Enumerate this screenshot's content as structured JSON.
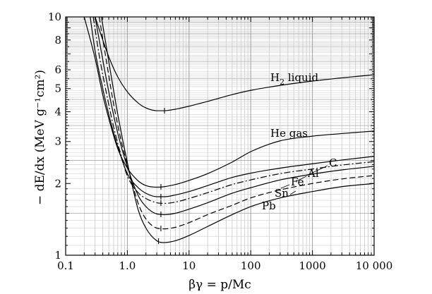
{
  "chart_data": {
    "type": "line",
    "xlabel": "βγ = p/Mc",
    "ylabel": "− dE/dx (MeV g⁻¹cm²)",
    "x_scale": "log",
    "y_scale": "log",
    "xlim": [
      0.1,
      10000
    ],
    "ylim": [
      1,
      10
    ],
    "x_ticks": [
      {
        "value": 0.1,
        "label": "0.1"
      },
      {
        "value": 1,
        "label": "1.0"
      },
      {
        "value": 10,
        "label": "10"
      },
      {
        "value": 100,
        "label": "100"
      },
      {
        "value": 1000,
        "label": "1000"
      },
      {
        "value": 10000,
        "label": "10 000"
      }
    ],
    "y_ticks": [
      {
        "value": 1,
        "label": "1"
      },
      {
        "value": 2,
        "label": "2"
      },
      {
        "value": 3,
        "label": "3"
      },
      {
        "value": 4,
        "label": "4"
      },
      {
        "value": 5,
        "label": "5"
      },
      {
        "value": 6,
        "label": "6"
      },
      {
        "value": 8,
        "label": "8"
      },
      {
        "value": 10,
        "label": "10"
      }
    ],
    "grid": true,
    "series": [
      {
        "name": "H2 liquid",
        "label_main": "H",
        "label_sub": "2",
        "label_rest": " liquid",
        "dash": "solid",
        "min_marker_x": 4.0,
        "x": [
          0.3,
          0.4,
          0.5,
          0.7,
          1.0,
          1.5,
          2.0,
          3.0,
          4.0,
          6.0,
          10,
          20,
          50,
          100,
          300,
          1000,
          3000,
          10000
        ],
        "y": [
          10.0,
          8.0,
          6.8,
          5.6,
          4.85,
          4.35,
          4.15,
          4.04,
          4.04,
          4.1,
          4.22,
          4.42,
          4.72,
          4.92,
          5.16,
          5.38,
          5.55,
          5.72
        ]
      },
      {
        "name": "He gas",
        "label_main": "He gas",
        "dash": "solid",
        "min_marker_x": 3.5,
        "x": [
          0.2,
          0.3,
          0.4,
          0.5,
          0.7,
          1.0,
          1.5,
          2.0,
          3.0,
          4.0,
          6.0,
          10,
          20,
          50,
          100,
          300,
          1000,
          3000,
          10000
        ],
        "y": [
          10.0,
          6.7,
          4.7,
          3.75,
          2.8,
          2.32,
          2.05,
          1.96,
          1.93,
          1.94,
          1.98,
          2.06,
          2.2,
          2.46,
          2.72,
          3.02,
          3.16,
          3.24,
          3.32
        ]
      },
      {
        "name": "C",
        "label_main": "C",
        "dash": "solid",
        "min_marker_x": 3.5,
        "x": [
          0.25,
          0.3,
          0.4,
          0.5,
          0.7,
          1.0,
          1.5,
          2.0,
          3.0,
          4.0,
          6.0,
          10,
          20,
          50,
          100,
          300,
          1000,
          3000,
          10000
        ],
        "y": [
          10.0,
          7.2,
          5.0,
          3.9,
          2.85,
          2.2,
          1.92,
          1.82,
          1.76,
          1.76,
          1.79,
          1.85,
          1.96,
          2.12,
          2.21,
          2.32,
          2.42,
          2.51,
          2.6
        ]
      },
      {
        "name": "Al",
        "label_main": "Al",
        "dash": "dashdot",
        "min_marker_x": 3.5,
        "x": [
          0.28,
          0.35,
          0.45,
          0.6,
          0.8,
          1.0,
          1.5,
          2.0,
          3.0,
          4.0,
          6.0,
          10,
          20,
          50,
          100,
          300,
          1000,
          3000,
          10000
        ],
        "y": [
          10.0,
          6.9,
          4.9,
          3.45,
          2.6,
          2.15,
          1.83,
          1.73,
          1.66,
          1.65,
          1.67,
          1.73,
          1.83,
          1.98,
          2.07,
          2.2,
          2.3,
          2.39,
          2.47
        ]
      },
      {
        "name": "Fe",
        "label_main": "Fe",
        "dash": "solid",
        "min_marker_x": 3.5,
        "x": [
          0.3,
          0.4,
          0.5,
          0.7,
          1.0,
          1.5,
          2.0,
          3.0,
          4.0,
          6.0,
          10,
          20,
          50,
          100,
          300,
          1000,
          3000,
          10000
        ],
        "y": [
          10.0,
          6.6,
          4.85,
          3.25,
          2.35,
          1.78,
          1.6,
          1.49,
          1.48,
          1.5,
          1.56,
          1.66,
          1.82,
          1.92,
          2.07,
          2.19,
          2.28,
          2.36
        ]
      },
      {
        "name": "Sn",
        "label_main": "Sn",
        "dash": "dashed",
        "min_marker_x": 3.5,
        "x": [
          0.35,
          0.45,
          0.6,
          0.8,
          1.0,
          1.5,
          2.0,
          3.0,
          4.0,
          6.0,
          10,
          20,
          50,
          100,
          300,
          1000,
          3000,
          10000
        ],
        "y": [
          10.0,
          6.7,
          4.3,
          3.0,
          2.4,
          1.65,
          1.42,
          1.3,
          1.29,
          1.31,
          1.37,
          1.48,
          1.62,
          1.74,
          1.88,
          2.0,
          2.09,
          2.16
        ]
      },
      {
        "name": "Pb",
        "label_main": "Pb",
        "dash": "solid",
        "min_marker_x": 3.2,
        "x": [
          0.38,
          0.5,
          0.7,
          1.0,
          1.5,
          2.0,
          3.0,
          4.0,
          6.0,
          10,
          20,
          50,
          100,
          300,
          1000,
          3000,
          10000
        ],
        "y": [
          10.0,
          6.5,
          3.9,
          2.45,
          1.55,
          1.3,
          1.15,
          1.13,
          1.15,
          1.21,
          1.32,
          1.48,
          1.6,
          1.74,
          1.85,
          1.94,
          2.0
        ]
      }
    ]
  }
}
